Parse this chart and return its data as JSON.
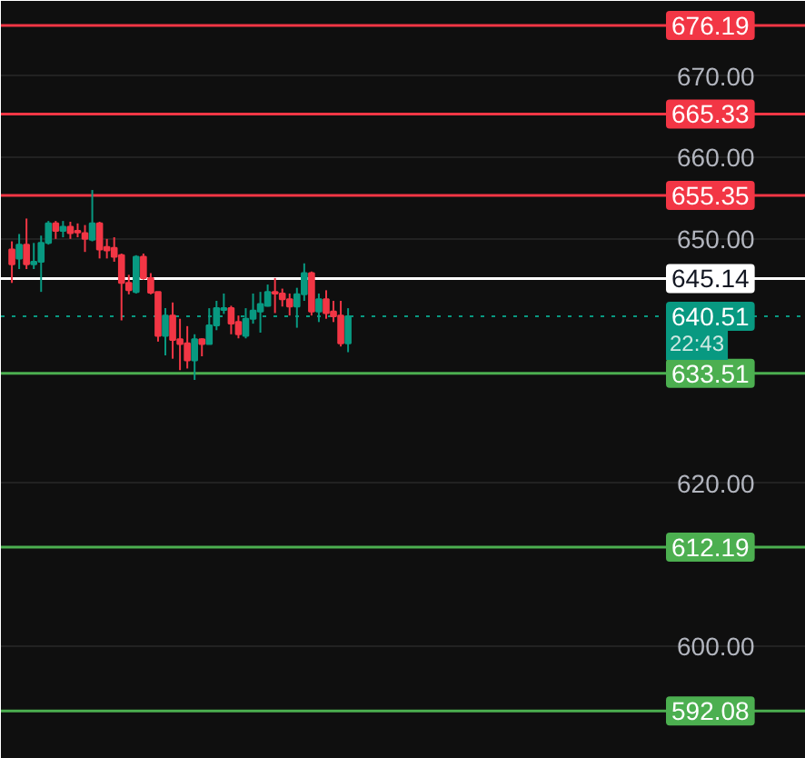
{
  "chart_data": {
    "type": "candlestick",
    "categories": [
      null,
      null,
      null,
      null,
      null,
      null,
      null,
      null,
      null,
      null,
      null,
      null,
      null,
      null,
      null,
      null,
      null,
      null,
      null,
      null,
      null,
      null,
      null,
      null,
      null,
      null,
      null,
      null,
      null,
      null,
      null,
      null,
      null,
      null,
      null,
      null,
      null,
      null,
      null,
      null,
      null,
      null,
      null,
      null,
      null,
      null,
      null,
      null,
      null,
      null,
      null,
      null,
      null,
      null,
      null,
      null,
      null,
      null,
      null,
      null,
      null,
      null,
      null,
      null,
      null,
      null,
      null,
      null,
      null,
      null,
      null,
      null,
      null,
      null,
      null,
      null,
      null,
      null,
      null,
      null,
      null,
      null,
      null,
      null,
      null,
      null,
      null,
      null,
      null,
      null
    ],
    "ohlc": [
      null,
      [
        648.7,
        649.7,
        644.6,
        646.9
      ],
      [
        647.6,
        650.6,
        646.3,
        649.3
      ],
      [
        649.3,
        652.5,
        646.3,
        646.9
      ],
      [
        646.9,
        649.5,
        646.3,
        647.2
      ],
      [
        647.2,
        650.4,
        643.5,
        649.5
      ],
      [
        649.5,
        652.2,
        649.3,
        651.9
      ],
      [
        651.9,
        652.2,
        650.0,
        651.0
      ],
      [
        651.0,
        652.2,
        650.2,
        651.5
      ],
      [
        651.5,
        652.1,
        650.0,
        650.7
      ],
      [
        651.0,
        651.9,
        650.2,
        650.8
      ],
      [
        650.7,
        651.7,
        648.4,
        650.0
      ],
      [
        649.9,
        656.0,
        649.7,
        651.9
      ],
      [
        651.9,
        652.1,
        647.6,
        648.7
      ],
      [
        649.0,
        650.0,
        647.6,
        648.6
      ],
      [
        648.9,
        650.2,
        647.2,
        647.8
      ],
      [
        648.0,
        648.2,
        640.0,
        644.6
      ],
      [
        644.6,
        645.6,
        643.2,
        643.7
      ],
      [
        643.5,
        648.0,
        643.3,
        647.8
      ],
      [
        647.8,
        648.2,
        645.0,
        645.2
      ],
      [
        645.2,
        645.8,
        643.2,
        643.4
      ],
      [
        643.5,
        643.5,
        637.4,
        638.1
      ],
      [
        638.1,
        641.5,
        635.7,
        640.6
      ],
      [
        640.6,
        642.2,
        635.3,
        637.6
      ],
      [
        637.7,
        640.2,
        633.9,
        637.1
      ],
      [
        637.2,
        639.3,
        634.1,
        635.1
      ],
      [
        635.1,
        638.3,
        632.7,
        637.7
      ],
      [
        637.7,
        637.8,
        635.6,
        637.1
      ],
      [
        637.1,
        641.5,
        637.1,
        639.4
      ],
      [
        639.4,
        642.4,
        638.8,
        641.5
      ],
      [
        641.3,
        643.3,
        640.8,
        641.5
      ],
      [
        641.5,
        641.8,
        638.3,
        639.6
      ],
      [
        639.8,
        640.6,
        637.8,
        638.3
      ],
      [
        638.1,
        641.5,
        637.8,
        640.2
      ],
      [
        640.2,
        643.3,
        639.6,
        641.2
      ],
      [
        641.1,
        643.5,
        638.5,
        642.0
      ],
      [
        641.8,
        644.4,
        641.7,
        643.5
      ],
      [
        643.5,
        645.2,
        640.9,
        643.3
      ],
      [
        643.3,
        643.9,
        641.7,
        642.6
      ],
      [
        642.6,
        643.3,
        640.6,
        641.7
      ],
      [
        641.7,
        644.0,
        639.1,
        643.2
      ],
      [
        643.2,
        647.0,
        642.4,
        645.8
      ],
      [
        645.8,
        646.0,
        640.6,
        641.1
      ],
      [
        641.1,
        643.3,
        639.8,
        642.6
      ],
      [
        642.6,
        643.7,
        640.2,
        640.9
      ],
      [
        641.1,
        642.4,
        639.8,
        640.5
      ],
      [
        640.6,
        642.4,
        636.8,
        637.2
      ],
      [
        637.2,
        641.5,
        636.1,
        640.5
      ],
      null,
      null,
      null,
      null,
      null,
      null,
      null,
      null,
      null,
      null,
      null,
      null,
      null,
      null,
      null,
      null,
      null,
      null,
      null,
      null,
      null,
      null,
      null,
      null,
      null,
      null,
      null,
      null,
      null,
      null,
      null,
      null,
      null,
      null,
      null,
      null,
      null,
      null,
      null,
      null,
      null,
      null
    ],
    "ylim": [
      586.2,
      679.2
    ],
    "yticks": [
      {
        "value": 600,
        "label": "600.00"
      },
      {
        "value": 620,
        "label": "620.00"
      },
      {
        "value": 650,
        "label": "650.00"
      },
      {
        "value": 660,
        "label": "660.00"
      },
      {
        "value": 670,
        "label": "670.00"
      }
    ],
    "grid": "y",
    "ref_lines": [
      {
        "axis": "y",
        "value": 676.19,
        "label": "676.19",
        "color": "#f23645"
      },
      {
        "axis": "y",
        "value": 665.33,
        "label": "665.33",
        "color": "#f23645"
      },
      {
        "axis": "y",
        "value": 655.35,
        "label": "655.35",
        "color": "#f23645"
      },
      {
        "axis": "y",
        "value": 645.14,
        "label": "645.14",
        "color": "#ffffff"
      },
      {
        "axis": "y",
        "value": 640.51,
        "label": "640.51",
        "color": "#089981",
        "line_style": "dotted"
      },
      {
        "axis": "y",
        "value": 633.51,
        "label": "633.51",
        "color": "#4caf50"
      },
      {
        "axis": "y",
        "value": 612.19,
        "label": "612.19",
        "color": "#4caf50"
      },
      {
        "axis": "y",
        "value": 592.08,
        "label": "592.08",
        "color": "#4caf50"
      }
    ],
    "annotations": [
      {
        "text": "22:43",
        "y": 640.51
      }
    ]
  }
}
